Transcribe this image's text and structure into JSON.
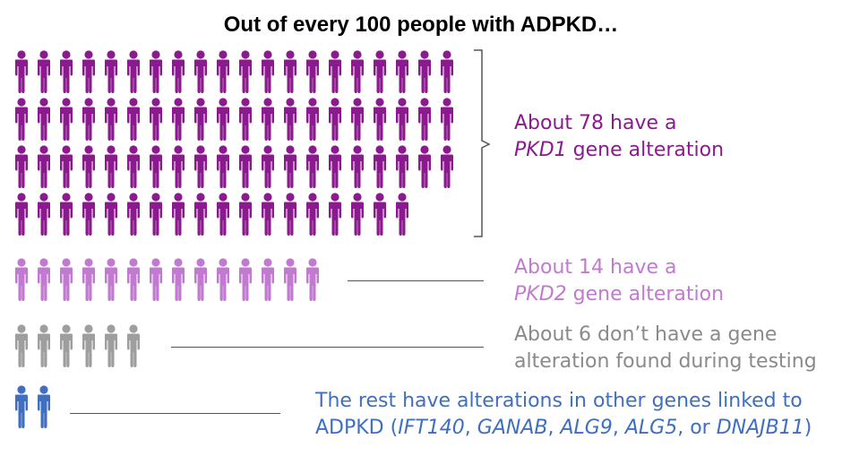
{
  "title": "Out of every 100 people with ADPKD…",
  "groups": [
    {
      "key": "pkd1",
      "count": 78,
      "color": "#8b1a8e",
      "label_line1": "About 78 have a",
      "label_line2_italic": "PKD1",
      "label_line2_rest": " gene alteration"
    },
    {
      "key": "pkd2",
      "count": 14,
      "color": "#c27ad0",
      "label_line1": "About 14 have a",
      "label_line2_italic": "PKD2",
      "label_line2_rest": " gene alteration"
    },
    {
      "key": "none",
      "count": 6,
      "color": "#9e9e9e",
      "label_line1": "About 6 don’t have a gene",
      "label_line2": "alteration found during testing"
    },
    {
      "key": "other",
      "count": 2,
      "color": "#3f6fbe",
      "label_line1": "The rest have alterations in other genes linked to",
      "label_line2_parts": [
        "ADPKD (",
        "IFT140",
        ", ",
        "GANAB",
        ", ",
        "ALG9",
        ", ",
        "ALG5",
        ", or ",
        "DNAJB11",
        ")"
      ]
    }
  ],
  "icons": {
    "person": "person-icon",
    "bracket": "bracket-icon"
  }
}
